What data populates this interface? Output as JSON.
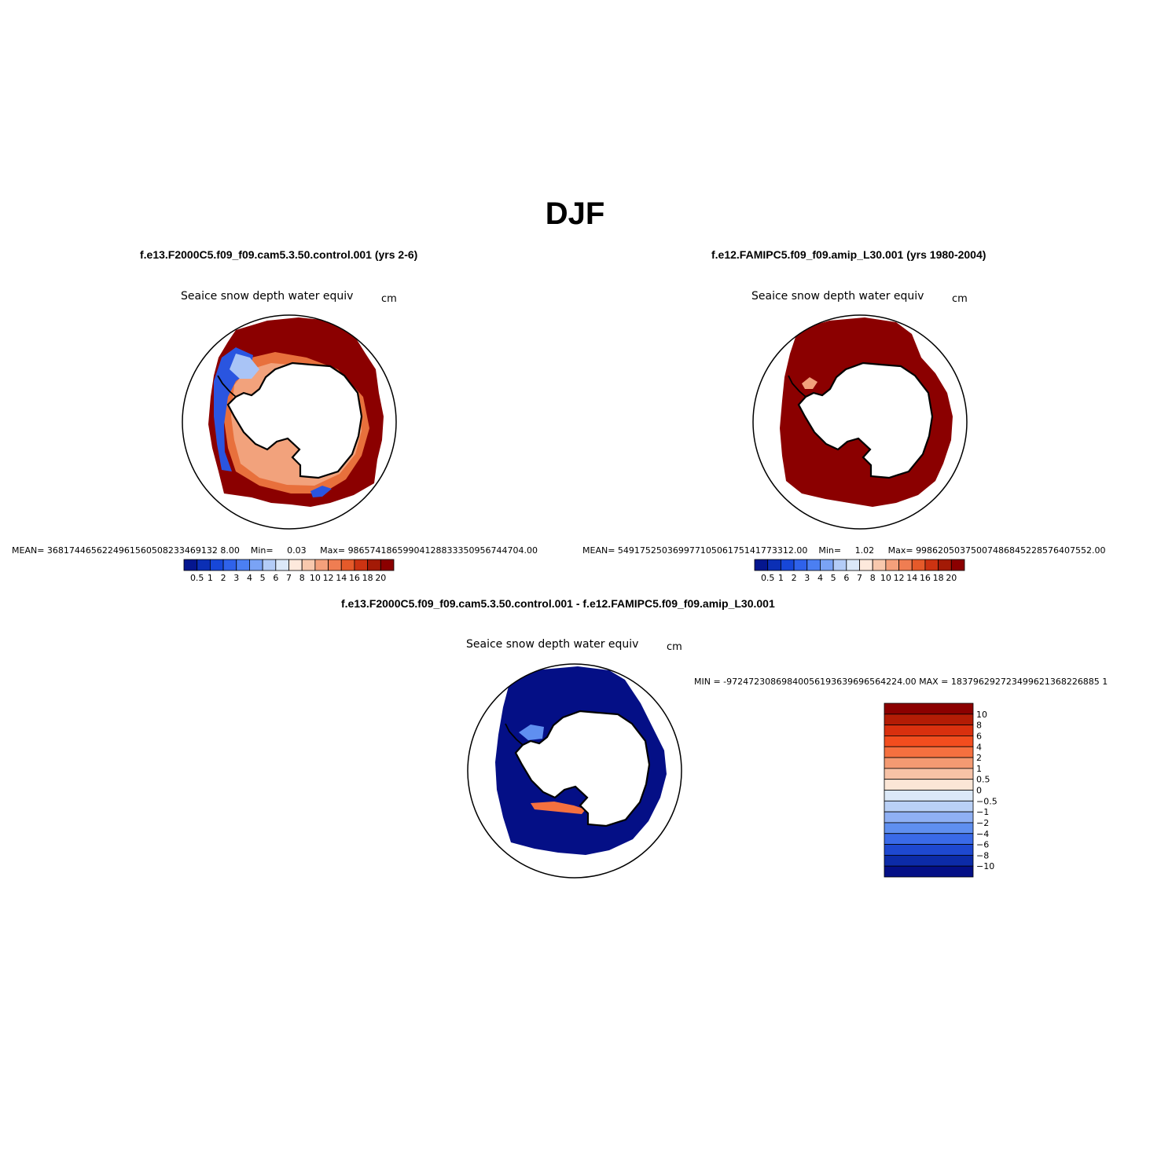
{
  "figure": {
    "season_title": "DJF"
  },
  "panel_left": {
    "case_title": "f.e13.F2000C5.f09_f09.cam5.3.50.control.001 (yrs 2-6)",
    "field_title": "Seaice snow depth water equiv",
    "units": "cm",
    "stats": {
      "mean_label": "MEAN=",
      "mean_value": "3681744656224961560508233469132 8.00",
      "min_label": "Min=",
      "min_value": "0.03",
      "max_label": "Max=",
      "max_value": "98657418659904128833350956744704.00"
    }
  },
  "panel_right": {
    "case_title": "f.e12.FAMIPC5.f09_f09.amip_L30.001 (yrs 1980-2004)",
    "field_title": "Seaice snow depth water equiv",
    "units": "cm",
    "stats": {
      "mean_label": "MEAN=",
      "mean_value": "54917525036997710506175141773312.00",
      "min_label": "Min=",
      "min_value": "1.02",
      "max_label": "Max=",
      "max_value": "99862050375007486845228576407552.00"
    }
  },
  "panel_diff": {
    "case_title": "f.e13.F2000C5.f09_f09.cam5.3.50.control.001 - f.e12.FAMIPC5.f09_f09.amip_L30.001",
    "field_title": "Seaice snow depth water equiv",
    "units": "cm",
    "minmax_text": "MIN = -97247230869840056193639696564224.00 MAX = 183796292723499621368226885 1"
  },
  "chart_data": [
    {
      "type": "heatmap",
      "title": "Seaice snow depth water equiv",
      "subtitle": "f.e13.F2000C5.f09_f09.cam5.3.50.control.001 (yrs 2-6)",
      "units": "cm",
      "projection": "south polar stereographic",
      "colorbar": {
        "orientation": "horizontal",
        "tick_labels": [
          "0.5",
          "1",
          "2",
          "3",
          "4",
          "5",
          "6",
          "7",
          "8",
          "10",
          "12",
          "14",
          "16",
          "18",
          "20"
        ],
        "colors": [
          "#05168f",
          "#0b2fb5",
          "#1747d8",
          "#2f62ea",
          "#4b7ff2",
          "#7aa3f5",
          "#b3ccf7",
          "#dbe8f8",
          "#fde9dc",
          "#f8c8ad",
          "#f4a07b",
          "#ef7d52",
          "#e55a2a",
          "#cc3312",
          "#a31a06",
          "#8b0000"
        ]
      }
    },
    {
      "type": "heatmap",
      "title": "Seaice snow depth water equiv",
      "subtitle": "f.e12.FAMIPC5.f09_f09.amip_L30.001 (yrs 1980-2004)",
      "units": "cm",
      "projection": "south polar stereographic",
      "colorbar": {
        "orientation": "horizontal",
        "tick_labels": [
          "0.5",
          "1",
          "2",
          "3",
          "4",
          "5",
          "6",
          "7",
          "8",
          "10",
          "12",
          "14",
          "16",
          "18",
          "20"
        ],
        "colors": [
          "#05168f",
          "#0b2fb5",
          "#1747d8",
          "#2f62ea",
          "#4b7ff2",
          "#7aa3f5",
          "#b3ccf7",
          "#dbe8f8",
          "#fde9dc",
          "#f8c8ad",
          "#f4a07b",
          "#ef7d52",
          "#e55a2a",
          "#cc3312",
          "#a31a06",
          "#8b0000"
        ]
      }
    },
    {
      "type": "heatmap",
      "title": "Seaice snow depth water equiv",
      "subtitle": "f.e13.F2000C5.f09_f09.cam5.3.50.control.001 - f.e12.FAMIPC5.f09_f09.amip_L30.001",
      "units": "cm",
      "projection": "south polar stereographic",
      "colorbar": {
        "orientation": "vertical",
        "tick_labels": [
          "10",
          "8",
          "6",
          "4",
          "2",
          "1",
          "0.5",
          "0",
          "−0.5",
          "−1",
          "−2",
          "−4",
          "−6",
          "−8",
          "−10"
        ],
        "colors": [
          "#8b0000",
          "#b31c05",
          "#d9300e",
          "#f24d1e",
          "#f5703f",
          "#f49a72",
          "#f7c2a6",
          "#fbe6d6",
          "#dbe8f8",
          "#b9d0f6",
          "#8fb0f4",
          "#5f8ff0",
          "#3a6ae8",
          "#1e48d0",
          "#0c2ba8",
          "#040f86"
        ]
      }
    }
  ]
}
